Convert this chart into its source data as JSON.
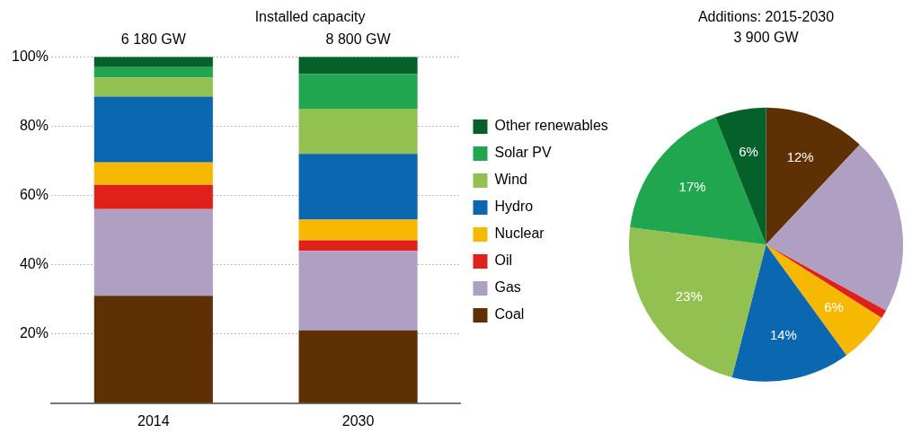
{
  "chart_data": [
    {
      "type": "bar",
      "title": "Installed capacity",
      "categories": [
        "2014",
        "2030"
      ],
      "stacked": true,
      "ylim": [
        0,
        100
      ],
      "yticks": [
        {
          "value": 20,
          "label": "20%"
        },
        {
          "value": 40,
          "label": "40%"
        },
        {
          "value": 60,
          "label": "60%"
        },
        {
          "value": 80,
          "label": "80%"
        },
        {
          "value": 100,
          "label": "100%"
        }
      ],
      "grid": "y",
      "legend": "right",
      "annotations": [
        "6 180 GW",
        "8 800 GW"
      ],
      "series": [
        {
          "name": "Coal",
          "color": "#5e3003",
          "values": [
            31,
            21
          ]
        },
        {
          "name": "Gas",
          "color": "#afa0c3",
          "values": [
            25,
            23
          ]
        },
        {
          "name": "Oil",
          "color": "#e0201b",
          "values": [
            7,
            3
          ]
        },
        {
          "name": "Nuclear",
          "color": "#f6b800",
          "values": [
            6.5,
            6
          ]
        },
        {
          "name": "Hydro",
          "color": "#0a67b0",
          "values": [
            19,
            19
          ]
        },
        {
          "name": "Wind",
          "color": "#92c051",
          "values": [
            5.5,
            13
          ]
        },
        {
          "name": "Solar PV",
          "color": "#21a650",
          "values": [
            3,
            10
          ]
        },
        {
          "name": "Other renewables",
          "color": "#05612a",
          "values": [
            3,
            5
          ]
        }
      ]
    },
    {
      "type": "pie",
      "title": "Additions: 2015-2030",
      "subtitle": "3 900 GW",
      "legend": false,
      "categories": [
        null,
        null,
        null,
        null,
        null,
        null,
        null,
        null
      ],
      "values": [
        12,
        21,
        1,
        6,
        14,
        23,
        17,
        6
      ],
      "colors": [
        "#5e3003",
        "#afa0c3",
        "#e0201b",
        "#f6b800",
        "#0a67b0",
        "#92c051",
        "#21a650",
        "#05612a"
      ],
      "value_labels": [
        "12%",
        null,
        null,
        "6%",
        "14%",
        "23%",
        "17%",
        "6%"
      ]
    }
  ]
}
